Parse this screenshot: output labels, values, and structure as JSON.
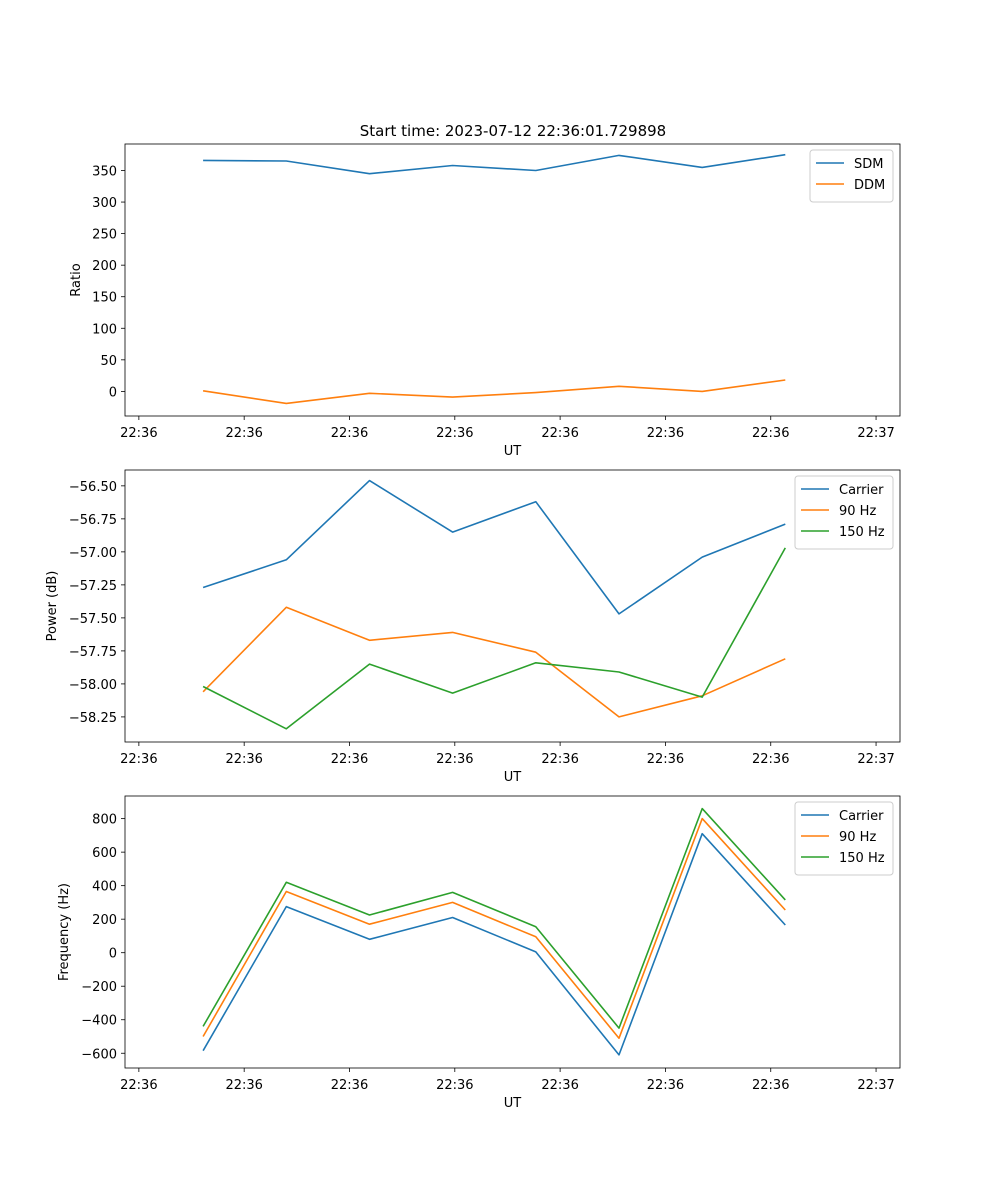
{
  "figure_title": "Start time: 2023-07-12 22:36:01.729898",
  "chart_data": [
    {
      "type": "line",
      "title": "Start time: 2023-07-12 22:36:01.729898",
      "xlabel": "UT",
      "ylabel": "Ratio",
      "xticks": [
        "22:36",
        "22:36",
        "22:36",
        "22:36",
        "22:36",
        "22:36",
        "22:36",
        "22:37"
      ],
      "x": [
        0.5,
        1.16,
        1.82,
        2.48,
        3.14,
        3.8,
        4.46,
        5.12
      ],
      "xlim": [
        -0.12,
        6.03
      ],
      "ylim": [
        -39,
        392
      ],
      "yticks": [
        0,
        50,
        100,
        150,
        200,
        250,
        300,
        350
      ],
      "legend_position": "top-right",
      "series": [
        {
          "name": "SDM",
          "color": "#1f77b4",
          "values": [
            366,
            365,
            345,
            358,
            350,
            374,
            355,
            375
          ]
        },
        {
          "name": "DDM",
          "color": "#ff7f0e",
          "values": [
            1,
            -19,
            -3,
            -9,
            -2,
            8,
            0,
            18
          ]
        }
      ]
    },
    {
      "type": "line",
      "xlabel": "UT",
      "ylabel": "Power (dB)",
      "xticks": [
        "22:36",
        "22:36",
        "22:36",
        "22:36",
        "22:36",
        "22:36",
        "22:36",
        "22:37"
      ],
      "x": [
        0.5,
        1.16,
        1.82,
        2.48,
        3.14,
        3.8,
        4.46,
        5.12
      ],
      "xlim": [
        -0.12,
        6.03
      ],
      "ylim": [
        -58.44,
        -56.38
      ],
      "yticks": [
        -58.25,
        -58.0,
        -57.75,
        -57.5,
        -57.25,
        -57.0,
        -56.75,
        -56.5
      ],
      "ytick_labels": [
        "−58.25",
        "−58.00",
        "−57.75",
        "−57.50",
        "−57.25",
        "−57.00",
        "−56.75",
        "−56.50"
      ],
      "legend_position": "top-right",
      "series": [
        {
          "name": "Carrier",
          "color": "#1f77b4",
          "values": [
            -57.27,
            -57.06,
            -56.46,
            -56.85,
            -56.62,
            -57.47,
            -57.04,
            -56.79
          ]
        },
        {
          "name": "90 Hz",
          "color": "#ff7f0e",
          "values": [
            -58.06,
            -57.42,
            -57.67,
            -57.61,
            -57.76,
            -58.25,
            -58.09,
            -57.81
          ]
        },
        {
          "name": "150 Hz",
          "color": "#2ca02c",
          "values": [
            -58.02,
            -58.34,
            -57.85,
            -58.07,
            -57.84,
            -57.91,
            -58.1,
            -56.97
          ]
        }
      ]
    },
    {
      "type": "line",
      "xlabel": "UT",
      "ylabel": "Frequency (Hz)",
      "xticks": [
        "22:36",
        "22:36",
        "22:36",
        "22:36",
        "22:36",
        "22:36",
        "22:36",
        "22:37"
      ],
      "x": [
        0.5,
        1.16,
        1.82,
        2.48,
        3.14,
        3.8,
        4.46,
        5.12
      ],
      "xlim": [
        -0.12,
        6.03
      ],
      "ylim": [
        -688,
        935
      ],
      "yticks": [
        -600,
        -400,
        -200,
        0,
        200,
        400,
        600,
        800
      ],
      "ytick_labels": [
        "−600",
        "−400",
        "−200",
        "0",
        "200",
        "400",
        "600",
        "800"
      ],
      "legend_position": "top-right",
      "series": [
        {
          "name": "Carrier",
          "color": "#1f77b4",
          "values": [
            -585,
            275,
            80,
            210,
            5,
            -610,
            710,
            165
          ]
        },
        {
          "name": "90 Hz",
          "color": "#ff7f0e",
          "values": [
            -500,
            365,
            170,
            300,
            95,
            -510,
            800,
            255
          ]
        },
        {
          "name": "150 Hz",
          "color": "#2ca02c",
          "values": [
            -440,
            420,
            225,
            360,
            155,
            -450,
            860,
            315
          ]
        }
      ]
    }
  ]
}
